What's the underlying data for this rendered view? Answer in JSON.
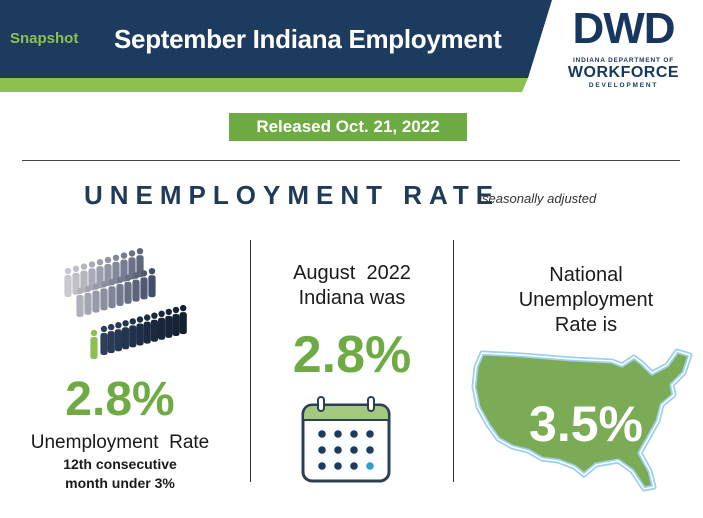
{
  "header": {
    "snapshot_label": "Snapshot",
    "title": "September Indiana Employment"
  },
  "logo": {
    "monogram": "DWD",
    "line1": "INDIANA DEPARTMENT OF",
    "line2": "WORKFORCE",
    "line3": "DEVELOPMENT"
  },
  "release": {
    "label": "Released Oct. 21, 2022"
  },
  "section": {
    "heading": "UNEMPLOYMENT RATE",
    "note": "*seasonally adjusted"
  },
  "indiana": {
    "rate": "2.8%",
    "label": "Unemployment  Rate",
    "sub1": "12th consecutive",
    "sub2": "month under 3%"
  },
  "august": {
    "line1": "August  2022",
    "line2": "Indiana was",
    "rate": "2.8%"
  },
  "national": {
    "line1": "National",
    "line2": "Unemployment",
    "line3": "Rate is",
    "rate": "3.5%"
  },
  "colors": {
    "navy": "#1d3b5e",
    "green": "#6eab45",
    "light_green": "#8cc152"
  }
}
